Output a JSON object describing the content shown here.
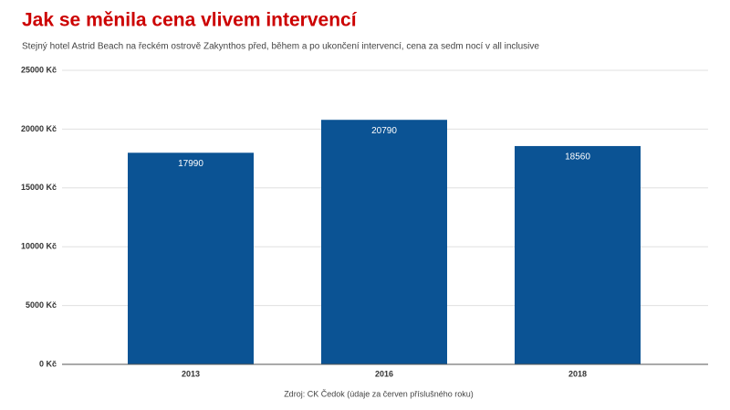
{
  "chart_data": {
    "type": "bar",
    "title": "Jak se měnila cena vlivem intervencí",
    "subtitle": "Stejný hotel Astrid Beach na řeckém ostrově Zakynthos před, během a po ukončení intervencí, cena za  sedm nocí v all inclusive",
    "source": "Zdroj: CK Čedok (údaje za červen příslušného roku)",
    "categories": [
      "2013",
      "2016",
      "2018"
    ],
    "values": [
      17990,
      20790,
      18560
    ],
    "color": "#0b5394",
    "ylim": [
      0,
      25000
    ],
    "yticks": [
      {
        "value": 0,
        "label": "0 Kč"
      },
      {
        "value": 5000,
        "label": "5000 Kč"
      },
      {
        "value": 10000,
        "label": "10000 Kč"
      },
      {
        "value": 15000,
        "label": "15000 Kč"
      },
      {
        "value": 20000,
        "label": "20000 Kč"
      },
      {
        "value": 25000,
        "label": "25000 Kč"
      }
    ],
    "grid": true
  }
}
